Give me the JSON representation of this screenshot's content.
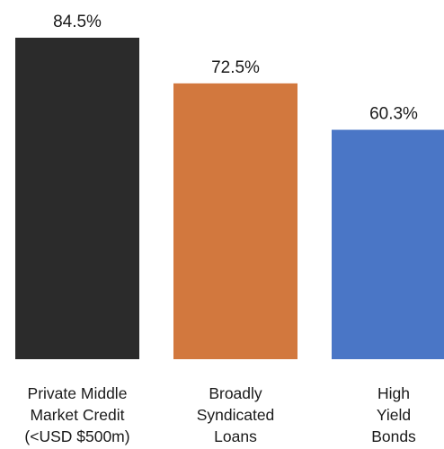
{
  "chart_data": {
    "type": "bar",
    "categories": [
      [
        "Private Middle",
        "Market Credit",
        "(<USD $500m)"
      ],
      [
        "Broadly",
        "Syndicated",
        "Loans"
      ],
      [
        "High",
        "Yield",
        "Bonds"
      ]
    ],
    "values": [
      84.5,
      72.5,
      60.3
    ],
    "value_labels": [
      "84.5%",
      "72.5%",
      "60.3%"
    ],
    "colors": [
      "#2b2b2b",
      "#d2783e",
      "#4a76c6"
    ],
    "title": "",
    "xlabel": "",
    "ylabel": "",
    "ylim": [
      0,
      84.5
    ],
    "grid": false,
    "legend": "none"
  }
}
